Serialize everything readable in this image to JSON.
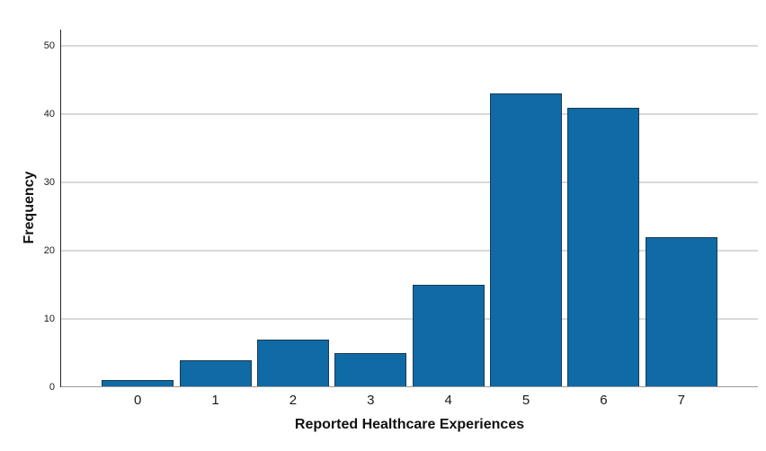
{
  "chart_data": {
    "type": "bar",
    "title": "",
    "xlabel": "Reported Healthcare Experiences",
    "ylabel": "Frequency",
    "categories": [
      "0",
      "1",
      "2",
      "3",
      "4",
      "5",
      "6",
      "7"
    ],
    "values": [
      1,
      4,
      7,
      5,
      15,
      43,
      41,
      22
    ],
    "y_ticks": [
      0,
      10,
      20,
      30,
      40,
      50
    ],
    "ylim": [
      0,
      52.4
    ],
    "grid": "horizontal-only",
    "legend": "none",
    "colors": {
      "bar_fill": "#0F6AA5",
      "bar_border": "#1A3B52",
      "gridline": "#D9D9D9",
      "x_axis_line": "#9B9B9B",
      "y_axis_line": "#262626",
      "background": "#FFFFFF"
    }
  }
}
